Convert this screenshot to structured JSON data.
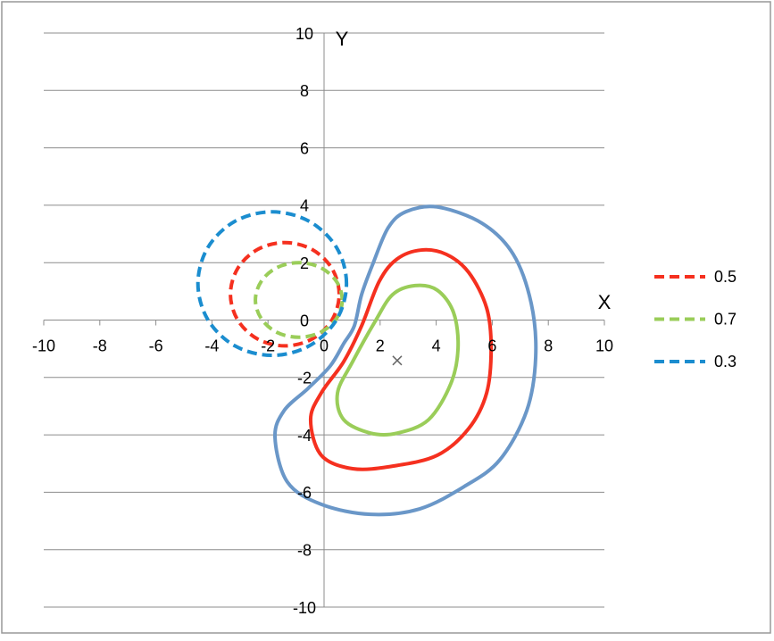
{
  "chart_data": {
    "type": "scatter",
    "x_label": "X",
    "y_label": "Y",
    "xlim": [
      -10,
      10
    ],
    "ylim": [
      -10,
      10
    ],
    "xticks": [
      -10,
      -8,
      -6,
      -4,
      -2,
      0,
      2,
      4,
      6,
      8,
      10
    ],
    "yticks": [
      10,
      8,
      6,
      4,
      2,
      0,
      -2,
      -4,
      -6,
      -8,
      -10
    ],
    "grid": true,
    "legend": "right",
    "series": [
      {
        "name": "0.5",
        "color": "#f5301f",
        "dash": true,
        "closed": true,
        "x": [
          0.54,
          0.28,
          -0.43,
          -1.4,
          -2.37,
          -3.08,
          -3.34,
          -3.08,
          -2.37,
          -1.4,
          -0.43,
          0.28
        ],
        "y": [
          0.9,
          1.8,
          2.46,
          2.7,
          2.46,
          1.8,
          0.9,
          0,
          -0.66,
          -0.9,
          -0.66,
          0
        ]
      },
      {
        "name": "0.7",
        "color": "#9acd59",
        "dash": true,
        "closed": true,
        "x": [
          0.65,
          0.44,
          -0.13,
          -0.9,
          -1.68,
          -2.24,
          -2.45,
          -2.24,
          -1.68,
          -0.9,
          -0.13,
          0.44
        ],
        "y": [
          0.7,
          1.35,
          1.83,
          2.0,
          1.83,
          1.35,
          0.7,
          0.05,
          -0.43,
          -0.6,
          -0.43,
          0.05
        ]
      },
      {
        "name": "0.3",
        "color": "#1b8dcf",
        "dash": true,
        "closed": true,
        "x": [
          0.8,
          0.45,
          -0.53,
          -1.85,
          -3.18,
          -4.15,
          -4.5,
          -4.15,
          -3.18,
          -1.85,
          -0.53,
          0.45
        ],
        "y": [
          1.27,
          2.52,
          3.44,
          3.77,
          3.44,
          2.52,
          1.27,
          0.02,
          -0.9,
          -1.23,
          -0.9,
          0.02
        ]
      },
      {
        "color": "#6a97c8",
        "dash": false,
        "closed": true,
        "x": [
          2.93,
          4.04,
          5.64,
          6.75,
          7.39,
          7.55,
          7.23,
          6.27,
          5.0,
          3.41,
          1.66,
          -0.1,
          -1.31,
          -1.75,
          -1.43,
          -0.57,
          0.22,
          0.7,
          1.08,
          1.34,
          1.75,
          2.29
        ],
        "y": [
          3.78,
          3.94,
          3.37,
          2.29,
          0.58,
          -1.29,
          -3.16,
          -4.87,
          -5.8,
          -6.58,
          -6.77,
          -6.42,
          -5.64,
          -4.09,
          -3.16,
          -2.38,
          -1.6,
          -0.82,
          -0.2,
          0.89,
          1.98,
          3.22
        ]
      },
      {
        "color": "#f5301f",
        "dash": false,
        "closed": true,
        "x": [
          3.47,
          4.36,
          5.16,
          5.8,
          5.96,
          5.8,
          5.16,
          4.04,
          2.45,
          1.02,
          -0.1,
          -0.48,
          -0.1,
          0.7,
          1.34,
          1.97,
          2.61
        ],
        "y": [
          2.44,
          2.29,
          1.66,
          0.42,
          -0.98,
          -2.54,
          -3.78,
          -4.71,
          -5.09,
          -5.18,
          -4.71,
          -3.47,
          -2.54,
          -1.45,
          -0.2,
          1.35,
          2.13
        ]
      },
      {
        "color": "#9acd59",
        "dash": false,
        "closed": true,
        "x": [
          3.25,
          4.04,
          4.62,
          4.78,
          4.52,
          3.73,
          2.61,
          1.66,
          0.7,
          0.48,
          1.02,
          1.82,
          2.45
        ],
        "y": [
          1.2,
          1.04,
          0.26,
          -0.98,
          -2.22,
          -3.47,
          -3.94,
          -3.94,
          -3.47,
          -2.54,
          -1.45,
          -0.05,
          0.89
        ]
      },
      {
        "color": "#666666",
        "marker": "x",
        "x": [
          2.61
        ],
        "y": [
          -1.41
        ]
      }
    ]
  }
}
